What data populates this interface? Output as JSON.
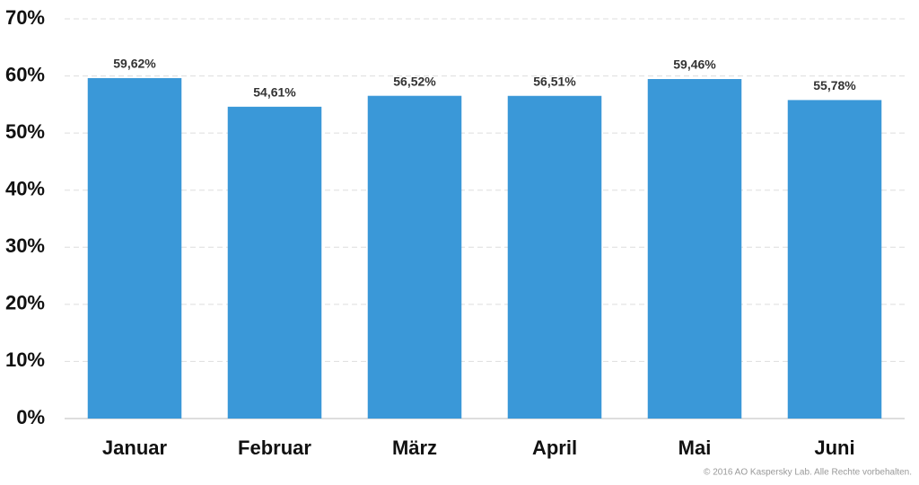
{
  "chart_data": {
    "type": "bar",
    "categories": [
      "Januar",
      "Februar",
      "März",
      "April",
      "Mai",
      "Juni"
    ],
    "values": [
      59.62,
      54.61,
      56.52,
      56.51,
      59.46,
      55.78
    ],
    "value_labels": [
      "59,62%",
      "54,61%",
      "56,52%",
      "56,51%",
      "59,46%",
      "55,78%"
    ],
    "color": "#3a98d8",
    "ylim": [
      0,
      70
    ],
    "yticks": [
      {
        "value": 0,
        "label": "0%"
      },
      {
        "value": 10,
        "label": "10%"
      },
      {
        "value": 20,
        "label": "20%"
      },
      {
        "value": 30,
        "label": "30%"
      },
      {
        "value": 40,
        "label": "40%"
      },
      {
        "value": 50,
        "label": "50%"
      },
      {
        "value": 60,
        "label": "60%"
      },
      {
        "value": 70,
        "label": "70%"
      }
    ],
    "grid": true,
    "footnote": "© 2016 AO Kaspersky Lab. Alle Rechte vorbehalten."
  }
}
